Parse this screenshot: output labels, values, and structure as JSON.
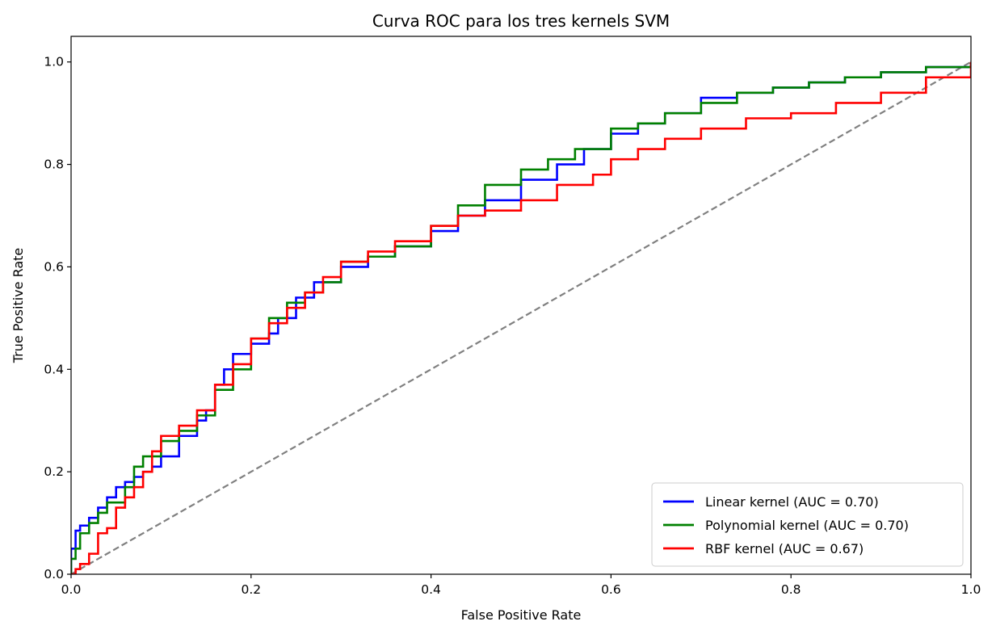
{
  "chart_data": {
    "type": "line",
    "title": "Curva ROC para los tres kernels SVM",
    "xlabel": "False Positive Rate",
    "ylabel": "True Positive Rate",
    "xlim": [
      0.0,
      1.0
    ],
    "ylim": [
      0.0,
      1.05
    ],
    "xticks": [
      "0.0",
      "0.2",
      "0.4",
      "0.6",
      "0.8",
      "1.0"
    ],
    "yticks": [
      "0.0",
      "0.2",
      "0.4",
      "0.6",
      "0.8",
      "1.0"
    ],
    "grid": false,
    "legend_position": "lower-right",
    "series": [
      {
        "name": "Linear kernel (AUC = 0.70)",
        "color": "#0000ff",
        "x": [
          0.0,
          0.0,
          0.005,
          0.01,
          0.02,
          0.03,
          0.04,
          0.05,
          0.06,
          0.07,
          0.08,
          0.09,
          0.1,
          0.12,
          0.14,
          0.15,
          0.16,
          0.17,
          0.18,
          0.2,
          0.22,
          0.23,
          0.25,
          0.27,
          0.3,
          0.33,
          0.36,
          0.4,
          0.43,
          0.46,
          0.5,
          0.54,
          0.57,
          0.6,
          0.63,
          0.66,
          0.7,
          0.74,
          0.78,
          0.82,
          0.86,
          0.9,
          0.95,
          1.0
        ],
        "y": [
          0.0,
          0.05,
          0.085,
          0.095,
          0.11,
          0.13,
          0.15,
          0.17,
          0.18,
          0.19,
          0.2,
          0.21,
          0.23,
          0.27,
          0.3,
          0.32,
          0.37,
          0.4,
          0.43,
          0.45,
          0.47,
          0.5,
          0.54,
          0.57,
          0.6,
          0.62,
          0.64,
          0.67,
          0.7,
          0.73,
          0.77,
          0.8,
          0.83,
          0.86,
          0.88,
          0.9,
          0.93,
          0.94,
          0.95,
          0.96,
          0.97,
          0.98,
          0.99,
          1.0
        ]
      },
      {
        "name": "Polynomial kernel (AUC = 0.70)",
        "color": "#008000",
        "x": [
          0.0,
          0.0,
          0.005,
          0.01,
          0.02,
          0.03,
          0.04,
          0.06,
          0.07,
          0.08,
          0.1,
          0.12,
          0.14,
          0.16,
          0.18,
          0.2,
          0.22,
          0.24,
          0.26,
          0.28,
          0.3,
          0.33,
          0.36,
          0.4,
          0.43,
          0.46,
          0.5,
          0.53,
          0.56,
          0.6,
          0.63,
          0.66,
          0.7,
          0.74,
          0.78,
          0.82,
          0.86,
          0.9,
          0.95,
          1.0
        ],
        "y": [
          0.0,
          0.03,
          0.05,
          0.08,
          0.1,
          0.12,
          0.14,
          0.17,
          0.21,
          0.23,
          0.26,
          0.28,
          0.31,
          0.36,
          0.4,
          0.46,
          0.5,
          0.53,
          0.55,
          0.57,
          0.61,
          0.62,
          0.64,
          0.68,
          0.72,
          0.76,
          0.79,
          0.81,
          0.83,
          0.87,
          0.88,
          0.9,
          0.92,
          0.94,
          0.95,
          0.96,
          0.97,
          0.98,
          0.99,
          1.0
        ]
      },
      {
        "name": "RBF kernel (AUC = 0.67)",
        "color": "#ff0000",
        "x": [
          0.0,
          0.005,
          0.01,
          0.02,
          0.03,
          0.04,
          0.05,
          0.06,
          0.07,
          0.08,
          0.09,
          0.1,
          0.12,
          0.14,
          0.16,
          0.18,
          0.2,
          0.22,
          0.24,
          0.26,
          0.28,
          0.3,
          0.33,
          0.36,
          0.4,
          0.43,
          0.46,
          0.5,
          0.54,
          0.58,
          0.6,
          0.63,
          0.66,
          0.7,
          0.75,
          0.8,
          0.85,
          0.9,
          0.95,
          1.0
        ],
        "y": [
          0.0,
          0.01,
          0.02,
          0.04,
          0.08,
          0.09,
          0.13,
          0.15,
          0.17,
          0.2,
          0.24,
          0.27,
          0.29,
          0.32,
          0.37,
          0.41,
          0.46,
          0.49,
          0.52,
          0.55,
          0.58,
          0.61,
          0.63,
          0.65,
          0.68,
          0.7,
          0.71,
          0.73,
          0.76,
          0.78,
          0.81,
          0.83,
          0.85,
          0.87,
          0.89,
          0.9,
          0.92,
          0.94,
          0.97,
          1.0
        ]
      }
    ],
    "reference_line": {
      "x": [
        0.0,
        1.0
      ],
      "y": [
        0.0,
        1.0
      ],
      "color": "#808080",
      "style": "dashed"
    }
  }
}
